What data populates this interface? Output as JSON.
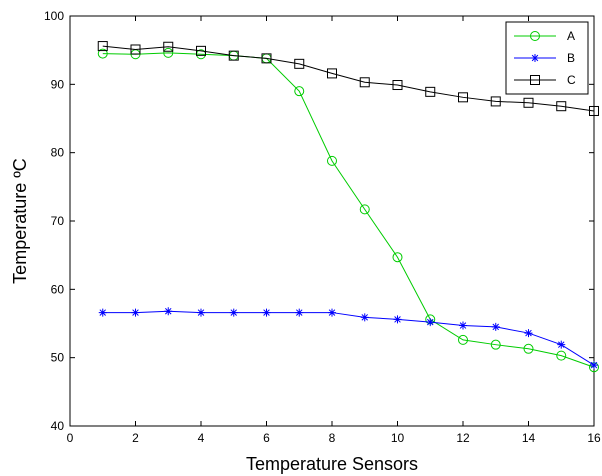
{
  "chart_data": {
    "type": "line",
    "title": "",
    "xlabel": "Temperature Sensors",
    "ylabel": "Temperature ºC",
    "xlim": [
      0,
      16
    ],
    "ylim": [
      40,
      100
    ],
    "xticks": [
      0,
      2,
      4,
      6,
      8,
      10,
      12,
      14,
      16
    ],
    "yticks": [
      40,
      50,
      60,
      70,
      80,
      90,
      100
    ],
    "grid": false,
    "legend_position": "top-right",
    "x": [
      1,
      2,
      3,
      4,
      5,
      6,
      7,
      8,
      9,
      10,
      11,
      12,
      13,
      14,
      15,
      16
    ],
    "series": [
      {
        "name": "A",
        "color": "#00cc00",
        "marker": "circle",
        "values": [
          94.5,
          94.4,
          94.6,
          94.4,
          94.2,
          93.8,
          89.0,
          78.8,
          71.7,
          64.7,
          55.6,
          52.6,
          51.9,
          51.3,
          50.3,
          48.6
        ]
      },
      {
        "name": "B",
        "color": "#0000ff",
        "marker": "star",
        "values": [
          56.6,
          56.6,
          56.8,
          56.6,
          56.6,
          56.6,
          56.6,
          56.6,
          55.9,
          55.6,
          55.2,
          54.7,
          54.5,
          53.6,
          51.9,
          48.9
        ]
      },
      {
        "name": "C",
        "color": "#000000",
        "marker": "square",
        "values": [
          95.6,
          95.1,
          95.5,
          94.9,
          94.2,
          93.8,
          93.0,
          91.6,
          90.3,
          89.9,
          88.9,
          88.1,
          87.5,
          87.3,
          86.8,
          86.1
        ]
      }
    ]
  }
}
